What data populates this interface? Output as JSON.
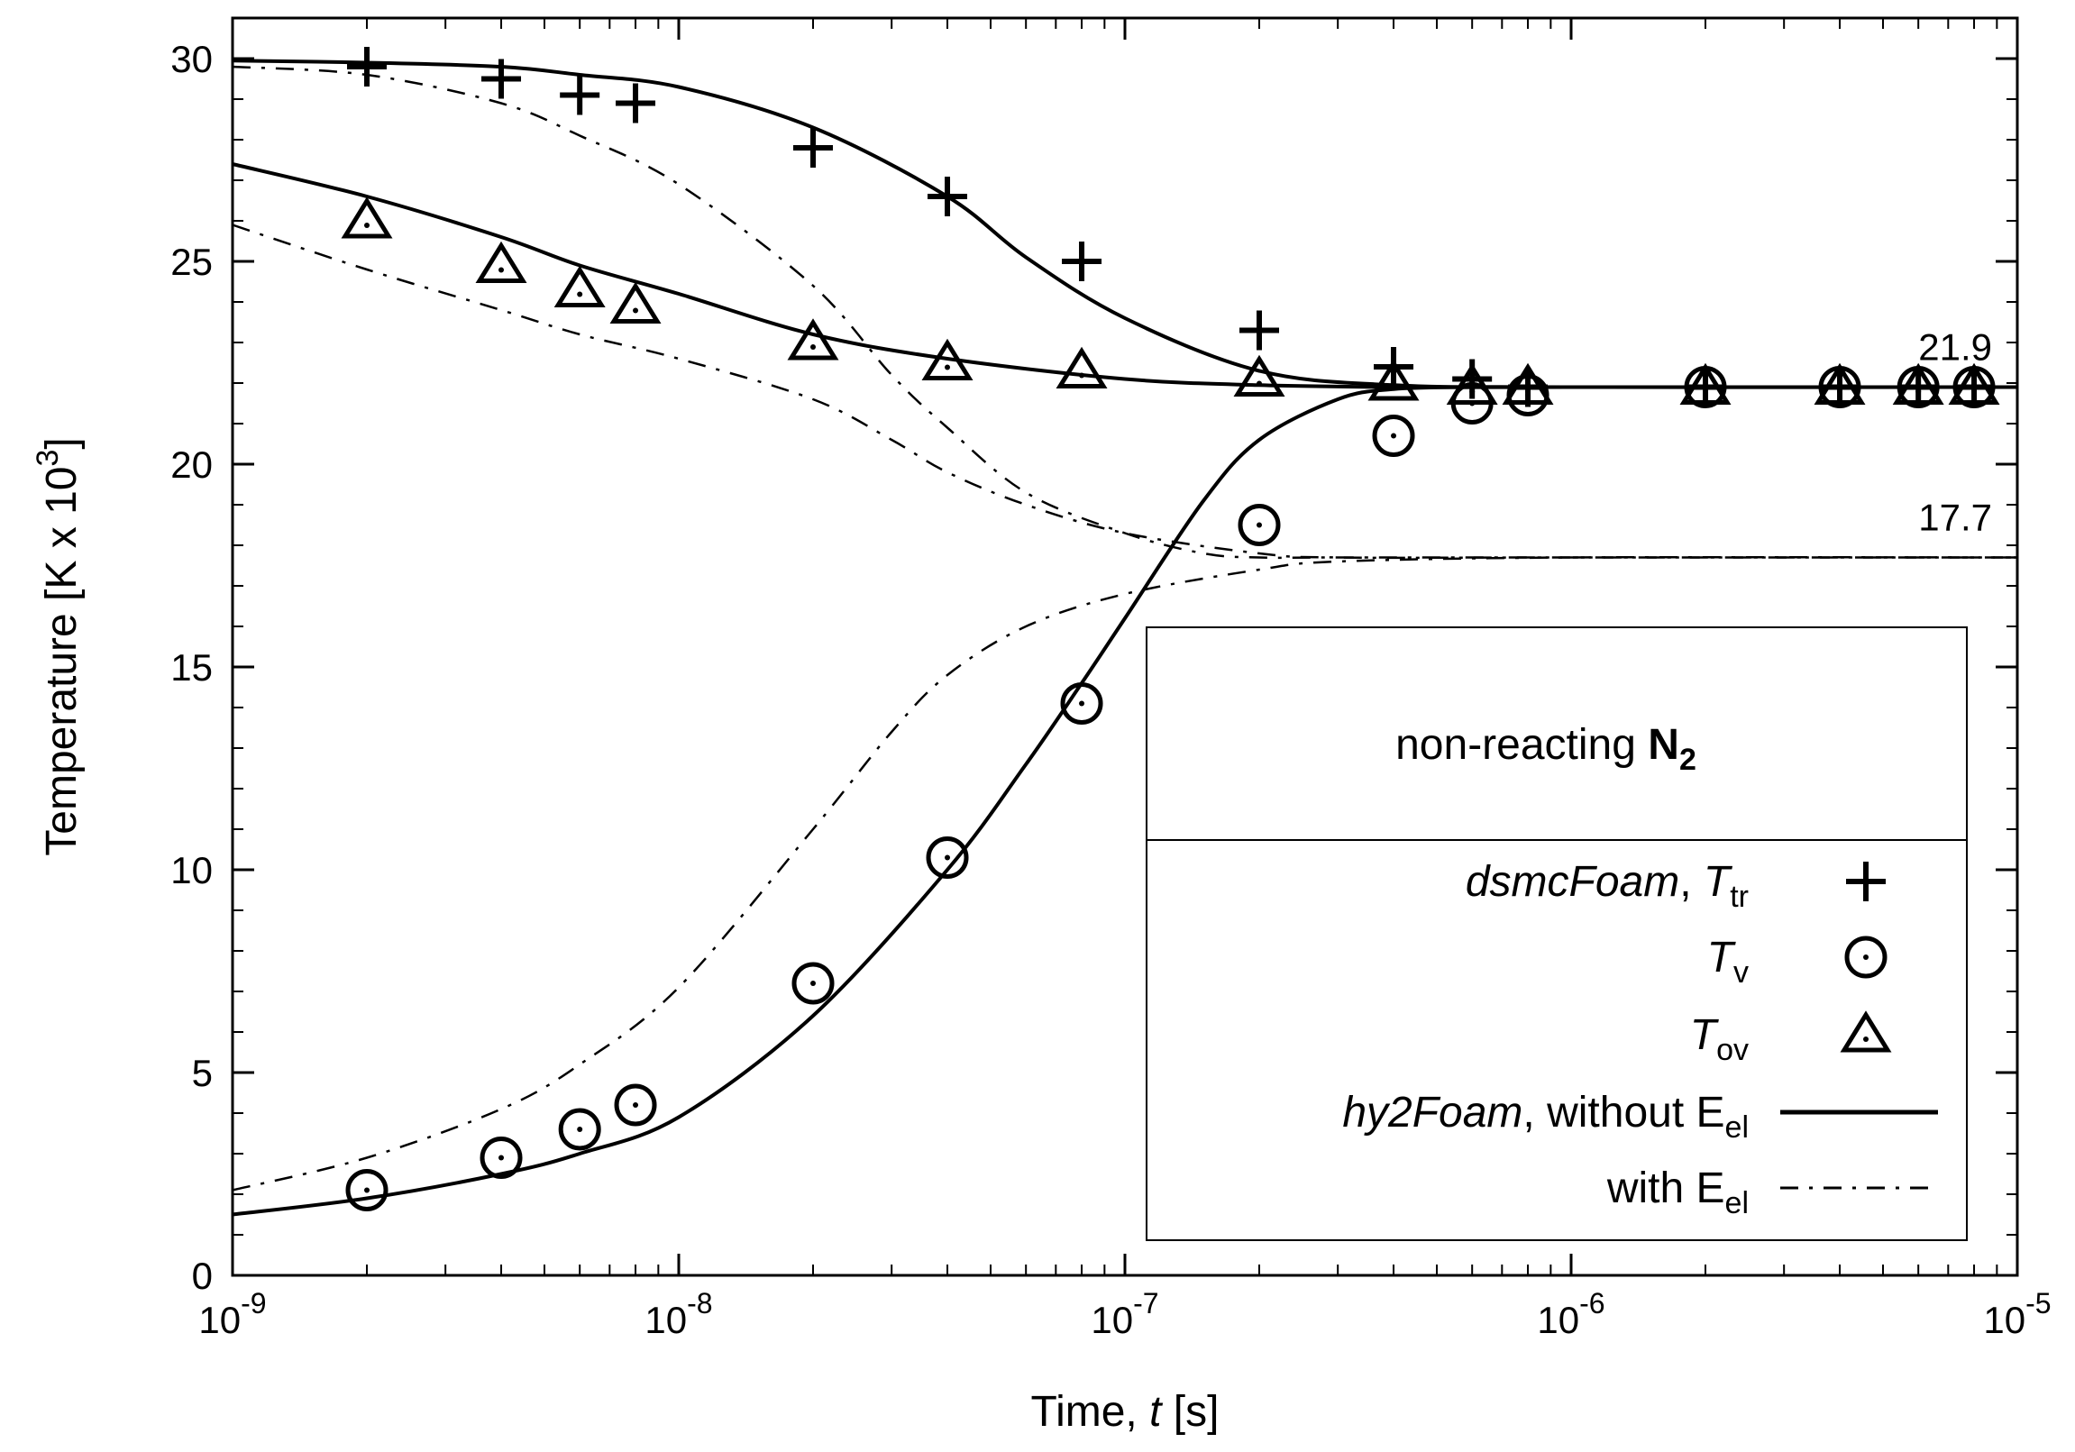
{
  "chart_data": {
    "type": "scatter",
    "xscale": "log",
    "xlim": [
      1e-09,
      1e-05
    ],
    "ylim": [
      0,
      31
    ],
    "xlabel": {
      "main": "Time, ",
      "italic": "t",
      "unit": "  [s]"
    },
    "ylabel": {
      "main": "Temperature  [K x 10",
      "sup": "3",
      "close": "]"
    },
    "x_ticks": [
      {
        "value": 1e-09,
        "base": "10",
        "exp": "-9"
      },
      {
        "value": 1e-08,
        "base": "10",
        "exp": "-8"
      },
      {
        "value": 1e-07,
        "base": "10",
        "exp": "-7"
      },
      {
        "value": 1e-06,
        "base": "10",
        "exp": "-6"
      },
      {
        "value": 1e-05,
        "base": "10",
        "exp": "-5"
      }
    ],
    "y_ticks": [
      {
        "value": 0,
        "label": "0"
      },
      {
        "value": 5,
        "label": "5"
      },
      {
        "value": 10,
        "label": "10"
      },
      {
        "value": 15,
        "label": "15"
      },
      {
        "value": 20,
        "label": "20"
      },
      {
        "value": 25,
        "label": "25"
      },
      {
        "value": 30,
        "label": "30"
      }
    ],
    "annotations": [
      {
        "text": "21.9",
        "x": 8e-06,
        "y": 21.9
      },
      {
        "text": "17.7",
        "x": 8e-06,
        "y": 17.7
      }
    ],
    "legend": {
      "position": "bottom-right",
      "title": {
        "text": "non-reacting ",
        "bold": "N",
        "sub": "2"
      },
      "entries": [
        {
          "italic": "dsmcFoam",
          "text": ", ",
          "sym_italic": "T",
          "sub": "tr",
          "marker": "plus"
        },
        {
          "italic": "",
          "text": "",
          "sym_italic": "T",
          "sub": "v",
          "marker": "circle"
        },
        {
          "italic": "",
          "text": "",
          "sym_italic": "T",
          "sub": "ov",
          "marker": "triangle"
        },
        {
          "italic": "hy2Foam",
          "text": ", without E",
          "sym_italic": "",
          "sub": "el",
          "marker": "solid"
        },
        {
          "italic": "",
          "text": "with E",
          "sym_italic": "",
          "sub": "el",
          "marker": "dashdot"
        }
      ]
    },
    "x_points": [
      2e-09,
      4e-09,
      6e-09,
      8e-09,
      2e-08,
      4e-08,
      8e-08,
      2e-07,
      4e-07,
      6e-07,
      8e-07,
      2e-06,
      4e-06,
      6e-06,
      8e-06
    ],
    "series": [
      {
        "name": "dsmcFoam T_tr",
        "marker": "plus",
        "values": [
          29.8,
          29.5,
          29.1,
          28.9,
          27.8,
          26.6,
          25.0,
          23.3,
          22.4,
          22.1,
          21.9,
          21.9,
          21.9,
          21.9,
          21.9
        ]
      },
      {
        "name": "dsmcFoam T_v",
        "marker": "circle",
        "values": [
          2.1,
          2.9,
          3.6,
          4.2,
          7.2,
          10.3,
          14.1,
          18.5,
          20.7,
          21.5,
          21.7,
          21.9,
          21.9,
          21.9,
          21.9
        ]
      },
      {
        "name": "dsmcFoam T_ov",
        "marker": "triangle",
        "values": [
          26.0,
          24.9,
          24.3,
          23.9,
          23.0,
          22.5,
          22.3,
          22.1,
          22.0,
          21.9,
          21.9,
          21.9,
          21.9,
          21.9,
          21.9
        ]
      },
      {
        "name": "hy2Foam T_tr without E_el",
        "style": "solid",
        "x": [
          1e-09,
          2e-09,
          4e-09,
          6e-09,
          1e-08,
          2e-08,
          4e-08,
          6e-08,
          1e-07,
          2e-07,
          4e-07,
          1e-06,
          1e-05
        ],
        "values": [
          29.95,
          29.9,
          29.8,
          29.6,
          29.3,
          28.3,
          26.6,
          25.1,
          23.6,
          22.3,
          21.95,
          21.9,
          21.9
        ]
      },
      {
        "name": "hy2Foam T_ov without E_el",
        "style": "solid",
        "x": [
          1e-09,
          2e-09,
          4e-09,
          6e-09,
          1e-08,
          2e-08,
          4e-08,
          1e-07,
          2e-07,
          4e-07,
          1e-06,
          1e-05
        ],
        "values": [
          27.4,
          26.6,
          25.6,
          24.9,
          24.2,
          23.2,
          22.6,
          22.1,
          21.95,
          21.9,
          21.9,
          21.9
        ]
      },
      {
        "name": "hy2Foam T_v without E_el",
        "style": "solid",
        "x": [
          1e-09,
          2e-09,
          4e-09,
          6e-09,
          1e-08,
          2e-08,
          4e-08,
          6e-08,
          8e-08,
          1e-07,
          1.5e-07,
          2e-07,
          3e-07,
          4e-07,
          6e-07,
          1e-06,
          1e-05
        ],
        "values": [
          1.5,
          1.9,
          2.5,
          3.0,
          3.9,
          6.4,
          10.0,
          12.6,
          14.6,
          16.2,
          19.1,
          20.6,
          21.6,
          21.85,
          21.9,
          21.9,
          21.9
        ]
      },
      {
        "name": "hy2Foam T_tr with E_el",
        "style": "dashdot",
        "x": [
          1e-09,
          2e-09,
          4e-09,
          6e-09,
          1e-08,
          2e-08,
          3e-08,
          4e-08,
          6e-08,
          1e-07,
          1.5e-07,
          2e-07,
          3e-07,
          1e-06,
          1e-05
        ],
        "values": [
          29.8,
          29.6,
          28.9,
          28.1,
          26.9,
          24.4,
          22.2,
          20.9,
          19.3,
          18.3,
          17.8,
          17.7,
          17.7,
          17.7,
          17.7
        ]
      },
      {
        "name": "hy2Foam T_ov with E_el",
        "style": "dashdot",
        "x": [
          1e-09,
          2e-09,
          4e-09,
          6e-09,
          1e-08,
          2e-08,
          3e-08,
          4e-08,
          6e-08,
          1e-07,
          2e-07,
          3e-07,
          1e-06,
          1e-05
        ],
        "values": [
          25.9,
          24.8,
          23.8,
          23.2,
          22.6,
          21.6,
          20.6,
          19.8,
          19.0,
          18.3,
          17.8,
          17.7,
          17.7,
          17.7
        ]
      },
      {
        "name": "hy2Foam T_v with E_el",
        "style": "dashdot",
        "x": [
          1e-09,
          2e-09,
          4e-09,
          6e-09,
          1e-08,
          2e-08,
          3e-08,
          4e-08,
          6e-08,
          1e-07,
          2e-07,
          3e-07,
          1e-06,
          1e-05
        ],
        "values": [
          2.1,
          2.9,
          4.1,
          5.2,
          7.1,
          11.0,
          13.4,
          14.8,
          16.0,
          16.8,
          17.4,
          17.6,
          17.7,
          17.7
        ]
      }
    ]
  }
}
